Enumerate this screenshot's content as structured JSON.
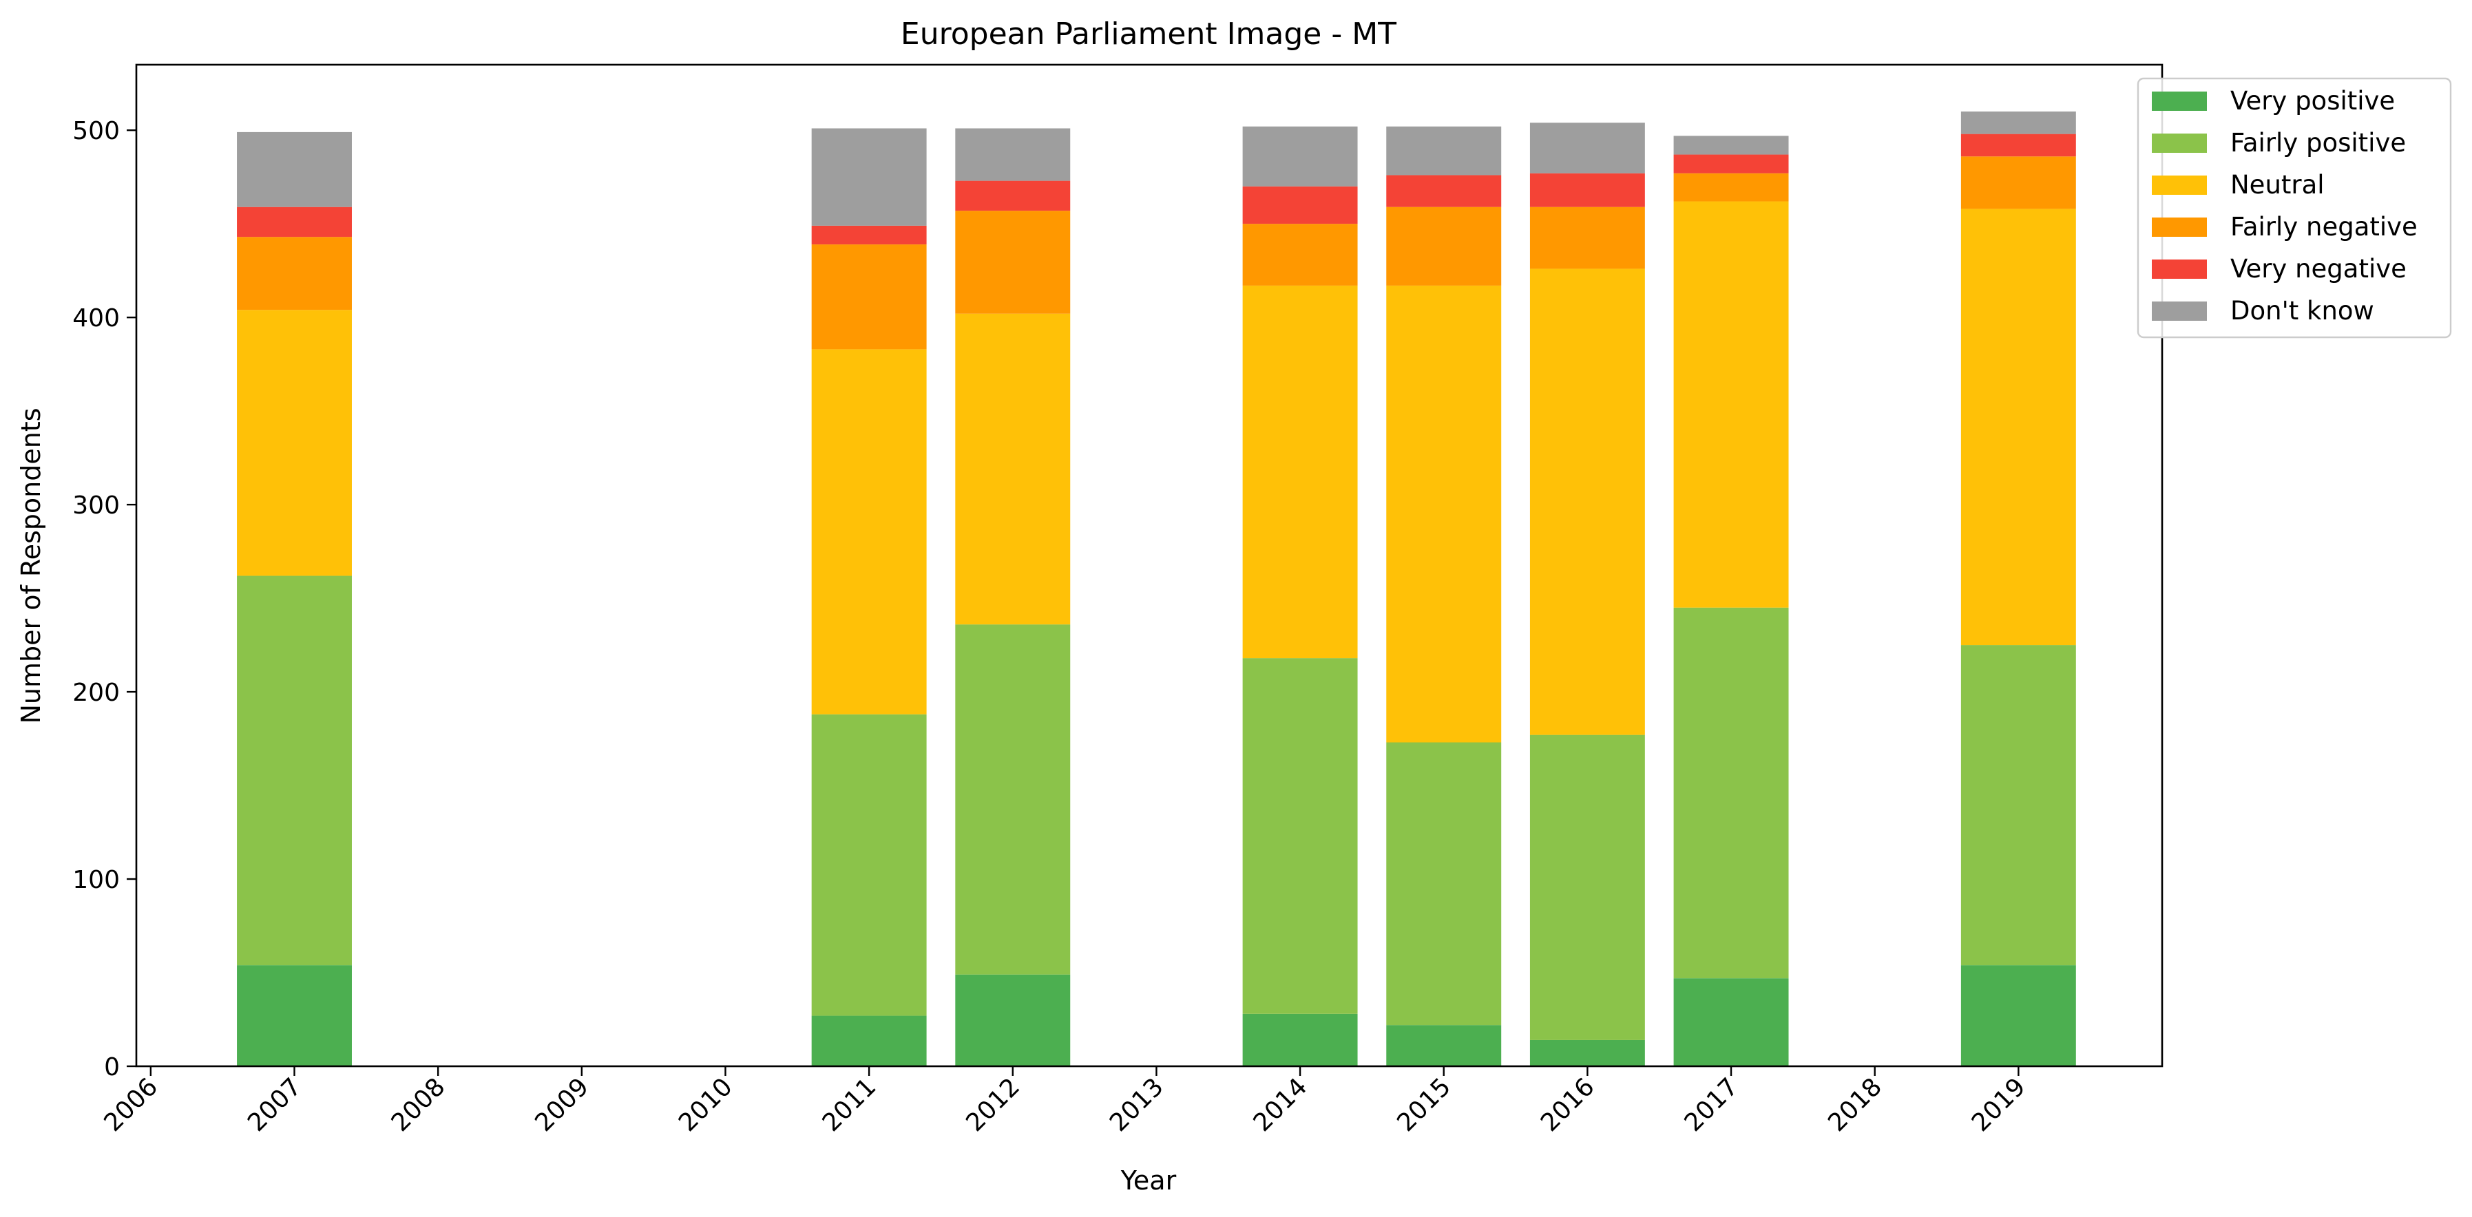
{
  "chart_data": {
    "type": "bar",
    "stacked": true,
    "title": "European Parliament Image - MT",
    "xlabel": "Year",
    "ylabel": "Number of Respondents",
    "x_ticks": [
      "2006",
      "2007",
      "2008",
      "2009",
      "2010",
      "2011",
      "2012",
      "2013",
      "2014",
      "2015",
      "2016",
      "2017",
      "2018",
      "2019"
    ],
    "categories": [
      "2007",
      "2011",
      "2012",
      "2014",
      "2015",
      "2016",
      "2017",
      "2019"
    ],
    "y_ticks": [
      0,
      100,
      200,
      300,
      400,
      500
    ],
    "xlim": [
      2005.9,
      2020.0
    ],
    "ylim": [
      0,
      535
    ],
    "grid": false,
    "legend_position": "top-right (outside)",
    "series": [
      {
        "name": "Very positive",
        "color": "#4caf50",
        "values": [
          54,
          27,
          49,
          28,
          22,
          14,
          47,
          54
        ]
      },
      {
        "name": "Fairly positive",
        "color": "#8bc34a",
        "values": [
          208,
          161,
          187,
          190,
          151,
          163,
          198,
          171
        ]
      },
      {
        "name": "Neutral",
        "color": "#ffc107",
        "values": [
          142,
          195,
          166,
          199,
          244,
          249,
          217,
          233
        ]
      },
      {
        "name": "Fairly negative",
        "color": "#ff9800",
        "values": [
          39,
          56,
          55,
          33,
          42,
          33,
          15,
          28
        ]
      },
      {
        "name": "Very negative",
        "color": "#f44336",
        "values": [
          16,
          10,
          16,
          20,
          17,
          18,
          10,
          12
        ]
      },
      {
        "name": "Don't know",
        "color": "#9e9e9e",
        "values": [
          40,
          52,
          28,
          32,
          26,
          27,
          10,
          12
        ]
      }
    ]
  }
}
